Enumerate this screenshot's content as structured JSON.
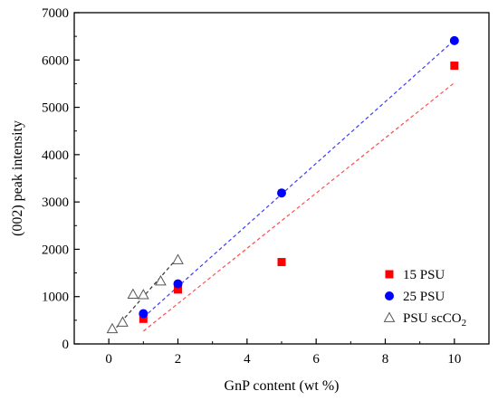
{
  "chart_data": {
    "type": "scatter",
    "xlabel": "GnP content (wt %)",
    "ylabel": "(002) peak intensity",
    "xlim": [
      -1,
      11
    ],
    "ylim": [
      0,
      7000
    ],
    "x_ticks": [
      0,
      2,
      4,
      6,
      8,
      10
    ],
    "y_ticks": [
      0,
      1000,
      2000,
      3000,
      4000,
      5000,
      6000,
      7000
    ],
    "grid": false,
    "legend_position": "bottom-right",
    "series": [
      {
        "name": "15 PSU",
        "marker": "square",
        "color": "#ff0000",
        "points": [
          [
            1,
            530
          ],
          [
            2,
            1150
          ],
          [
            5,
            1730
          ],
          [
            10,
            5880
          ]
        ],
        "fit_line": {
          "from": [
            1,
            270
          ],
          "to": [
            10,
            5520
          ],
          "color": "#ff4d4d"
        }
      },
      {
        "name": "25 PSU",
        "marker": "circle",
        "color": "#0000ff",
        "points": [
          [
            1,
            640
          ],
          [
            2,
            1270
          ],
          [
            5,
            3190
          ],
          [
            10,
            6410
          ]
        ],
        "fit_line": {
          "from": [
            1,
            560
          ],
          "to": [
            10,
            6420
          ],
          "color": "#3b3bff"
        }
      },
      {
        "name": "PSU scCO",
        "name_subscript": "2",
        "marker": "triangle-open",
        "color": "#555555",
        "points": [
          [
            0.1,
            320
          ],
          [
            0.4,
            460
          ],
          [
            0.7,
            1050
          ],
          [
            1,
            1040
          ],
          [
            1.5,
            1330
          ],
          [
            2,
            1780
          ]
        ],
        "fit_line": {
          "from": [
            0.1,
            250
          ],
          "to": [
            2,
            1830
          ],
          "color": "#333333"
        }
      }
    ]
  }
}
